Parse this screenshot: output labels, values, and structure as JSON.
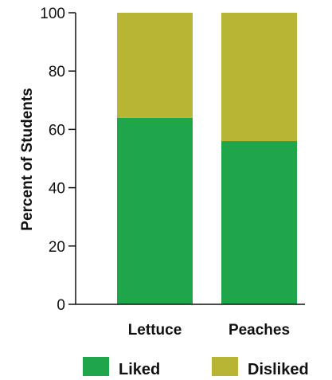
{
  "chart_data": {
    "type": "bar",
    "stacked": true,
    "categories": [
      "Lettuce",
      "Peaches"
    ],
    "series": [
      {
        "name": "Liked",
        "values": [
          64,
          56
        ],
        "color": "#1fa64a"
      },
      {
        "name": "Disliked",
        "values": [
          36,
          44
        ],
        "color": "#b8b434"
      }
    ],
    "ylabel": "Percent of Students",
    "xlabel": "",
    "title": "",
    "ylim": [
      0,
      100
    ],
    "yticks": [
      "0",
      "20",
      "40",
      "60",
      "80",
      "100"
    ],
    "grid": false,
    "legend_position": "bottom"
  }
}
